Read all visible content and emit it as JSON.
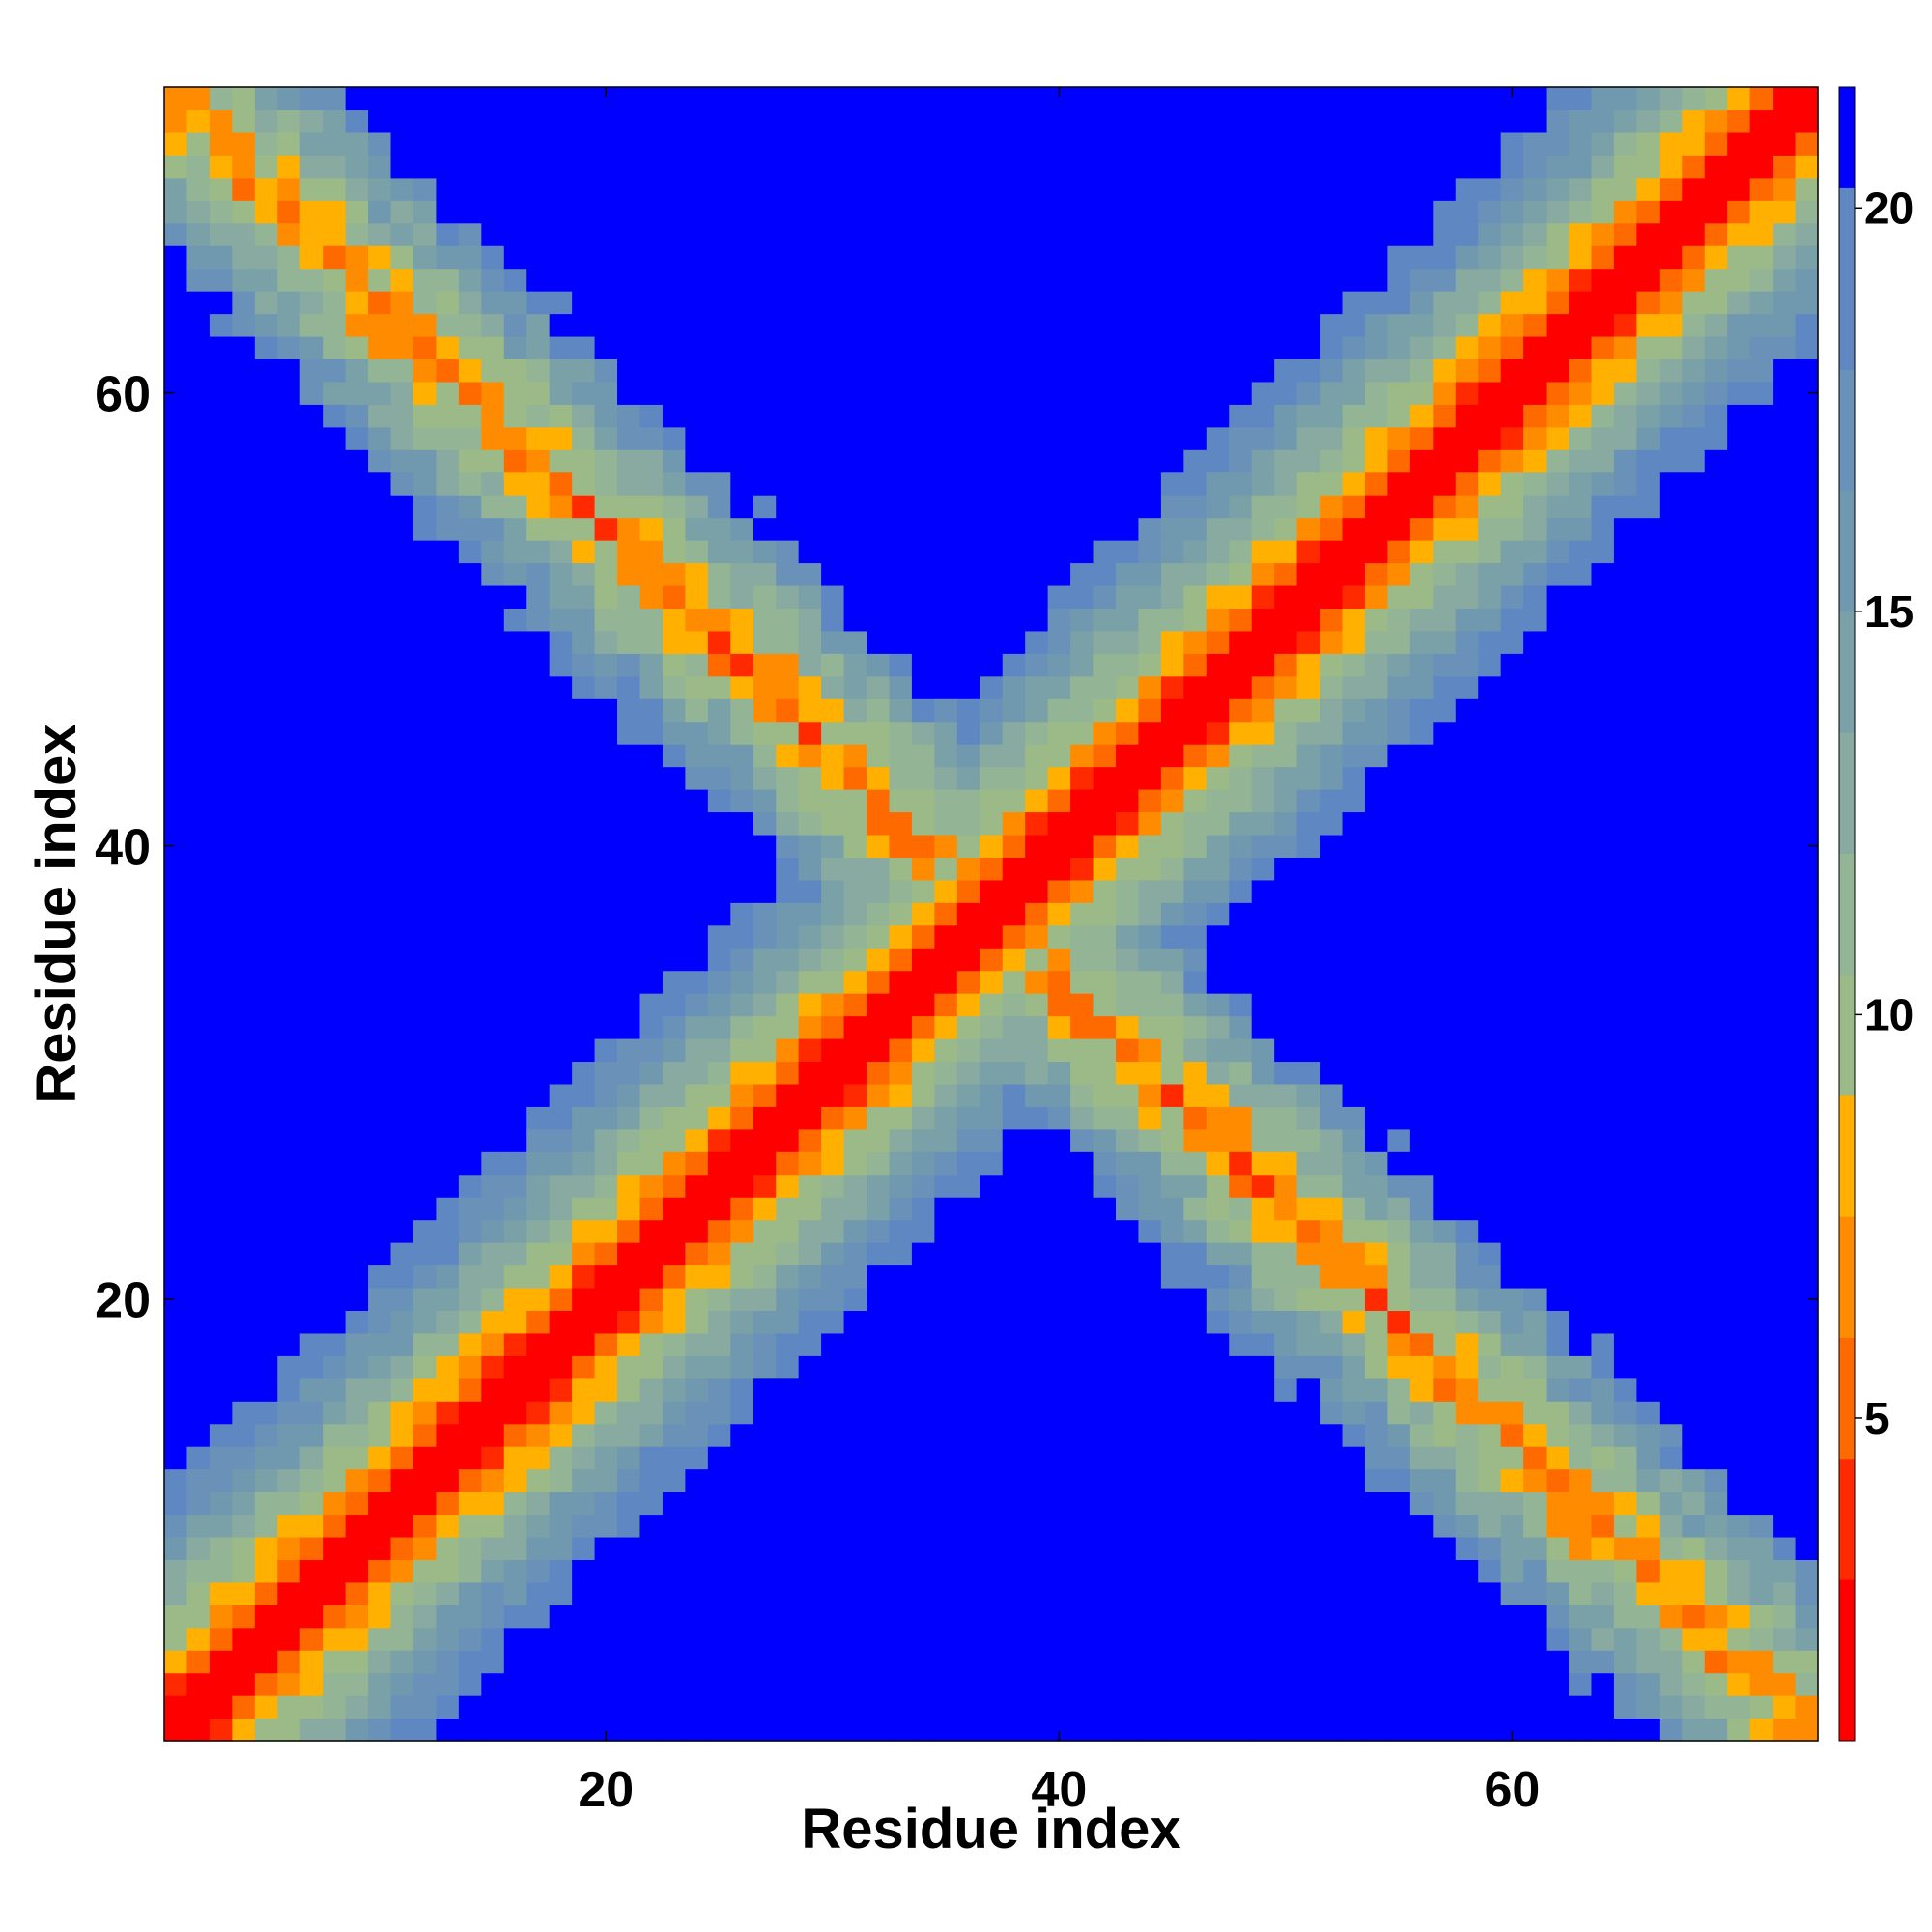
{
  "chart_data": {
    "type": "heatmap",
    "title": "",
    "xlabel": "Residue index",
    "ylabel": "Residue index",
    "n_residues": 73,
    "x_range": [
      1,
      73
    ],
    "y_range": [
      1,
      73
    ],
    "x_ticks": [
      20,
      40,
      60
    ],
    "y_ticks": [
      20,
      40,
      60
    ],
    "colorbar": {
      "range": [
        1,
        21.5
      ],
      "ticks": [
        5,
        10,
        15,
        20
      ],
      "bands": [
        {
          "to": 3.0,
          "color": "#ff0000"
        },
        {
          "to": 4.5,
          "color": "#ff2a00"
        },
        {
          "to": 6.0,
          "color": "#ff6a00"
        },
        {
          "to": 7.5,
          "color": "#ff8c00"
        },
        {
          "to": 9.0,
          "color": "#ffb000"
        },
        {
          "to": 10.5,
          "color": "#9cba88"
        },
        {
          "to": 12.0,
          "color": "#93b595"
        },
        {
          "to": 13.5,
          "color": "#88aaa0"
        },
        {
          "to": 15.0,
          "color": "#7aa0a8"
        },
        {
          "to": 16.5,
          "color": "#7099b0"
        },
        {
          "to": 18.0,
          "color": "#6a92b8"
        },
        {
          "to": 20.25,
          "color": "#5f88c2"
        },
        {
          "to": 21.5,
          "color": "#0000ff"
        }
      ]
    },
    "values": "distance matrix d(i,j) in angstrom-like units, 73x73: diagonal band (d from |i-j|) plus an anti-diagonal band of contacts (d from |i+j-74|); cells beyond cutoff ~20 shown saturated blue"
  }
}
